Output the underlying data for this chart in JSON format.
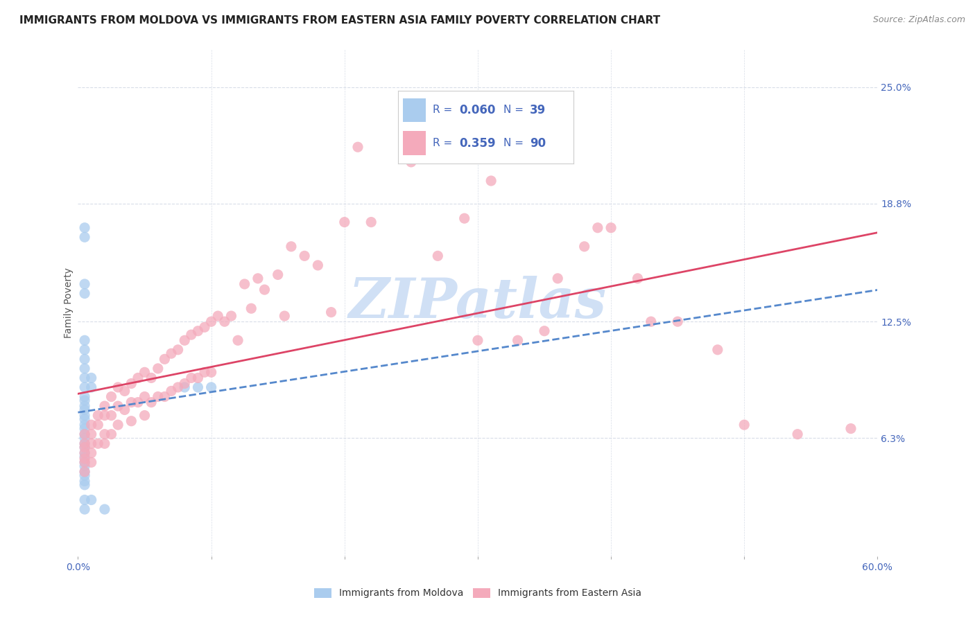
{
  "title": "IMMIGRANTS FROM MOLDOVA VS IMMIGRANTS FROM EASTERN ASIA FAMILY POVERTY CORRELATION CHART",
  "source": "Source: ZipAtlas.com",
  "ylabel": "Family Poverty",
  "xlim": [
    0.0,
    0.6
  ],
  "ylim": [
    0.0,
    0.27
  ],
  "yticks": [
    0.063,
    0.125,
    0.188,
    0.25
  ],
  "ytick_labels": [
    "6.3%",
    "12.5%",
    "18.8%",
    "25.0%"
  ],
  "xticks": [
    0.0,
    0.1,
    0.2,
    0.3,
    0.4,
    0.5,
    0.6
  ],
  "xtick_labels_show": [
    "0.0%",
    "",
    "",
    "",
    "",
    "",
    "60.0%"
  ],
  "series": [
    {
      "name": "Immigrants from Moldova",
      "R": "0.060",
      "N": "39",
      "color": "#aaccee",
      "edge_color": "#aaccee",
      "line_color": "#5588cc",
      "line_style": "--",
      "x": [
        0.005,
        0.005,
        0.005,
        0.005,
        0.005,
        0.005,
        0.005,
        0.005,
        0.005,
        0.005,
        0.005,
        0.005,
        0.005,
        0.005,
        0.005,
        0.005,
        0.005,
        0.005,
        0.005,
        0.005,
        0.005,
        0.005,
        0.005,
        0.005,
        0.005,
        0.005,
        0.01,
        0.01,
        0.01,
        0.02,
        0.08,
        0.09,
        0.1,
        0.005,
        0.005,
        0.005,
        0.005,
        0.005,
        0.005
      ],
      "y": [
        0.085,
        0.083,
        0.08,
        0.078,
        0.075,
        0.073,
        0.07,
        0.068,
        0.065,
        0.063,
        0.06,
        0.058,
        0.055,
        0.053,
        0.05,
        0.048,
        0.045,
        0.043,
        0.04,
        0.038,
        0.1,
        0.095,
        0.09,
        0.11,
        0.115,
        0.105,
        0.095,
        0.09,
        0.03,
        0.025,
        0.09,
        0.09,
        0.09,
        0.175,
        0.17,
        0.145,
        0.14,
        0.03,
        0.025
      ]
    },
    {
      "name": "Immigrants from Eastern Asia",
      "R": "0.359",
      "N": "90",
      "color": "#f4aabb",
      "edge_color": "#f4aabb",
      "line_color": "#dd4466",
      "line_style": "-",
      "x": [
        0.005,
        0.005,
        0.005,
        0.005,
        0.005,
        0.005,
        0.005,
        0.01,
        0.01,
        0.01,
        0.01,
        0.01,
        0.015,
        0.015,
        0.015,
        0.02,
        0.02,
        0.02,
        0.02,
        0.025,
        0.025,
        0.025,
        0.03,
        0.03,
        0.03,
        0.035,
        0.035,
        0.04,
        0.04,
        0.04,
        0.045,
        0.045,
        0.05,
        0.05,
        0.05,
        0.055,
        0.055,
        0.06,
        0.06,
        0.065,
        0.065,
        0.07,
        0.07,
        0.075,
        0.075,
        0.08,
        0.08,
        0.085,
        0.085,
        0.09,
        0.09,
        0.095,
        0.095,
        0.1,
        0.1,
        0.105,
        0.11,
        0.115,
        0.12,
        0.125,
        0.13,
        0.135,
        0.14,
        0.15,
        0.155,
        0.16,
        0.17,
        0.18,
        0.19,
        0.2,
        0.21,
        0.22,
        0.25,
        0.27,
        0.29,
        0.31,
        0.33,
        0.36,
        0.39,
        0.42,
        0.45,
        0.48,
        0.3,
        0.35,
        0.38,
        0.4,
        0.43,
        0.5,
        0.54,
        0.58
      ],
      "y": [
        0.065,
        0.06,
        0.058,
        0.055,
        0.052,
        0.05,
        0.045,
        0.07,
        0.065,
        0.06,
        0.055,
        0.05,
        0.075,
        0.07,
        0.06,
        0.08,
        0.075,
        0.065,
        0.06,
        0.085,
        0.075,
        0.065,
        0.09,
        0.08,
        0.07,
        0.088,
        0.078,
        0.092,
        0.082,
        0.072,
        0.095,
        0.082,
        0.098,
        0.085,
        0.075,
        0.095,
        0.082,
        0.1,
        0.085,
        0.105,
        0.085,
        0.108,
        0.088,
        0.11,
        0.09,
        0.115,
        0.092,
        0.118,
        0.095,
        0.12,
        0.095,
        0.122,
        0.098,
        0.125,
        0.098,
        0.128,
        0.125,
        0.128,
        0.115,
        0.145,
        0.132,
        0.148,
        0.142,
        0.15,
        0.128,
        0.165,
        0.16,
        0.155,
        0.13,
        0.178,
        0.218,
        0.178,
        0.21,
        0.16,
        0.18,
        0.2,
        0.115,
        0.148,
        0.175,
        0.148,
        0.125,
        0.11,
        0.115,
        0.12,
        0.165,
        0.175,
        0.125,
        0.07,
        0.065,
        0.068
      ]
    }
  ],
  "legend_color": "#4466bb",
  "watermark_text": "ZIPatlas",
  "watermark_color": "#d0e0f5",
  "background_color": "#ffffff",
  "grid_color": "#d8dde8",
  "title_fontsize": 11,
  "axis_label_fontsize": 10,
  "tick_fontsize": 10,
  "source_fontsize": 9
}
